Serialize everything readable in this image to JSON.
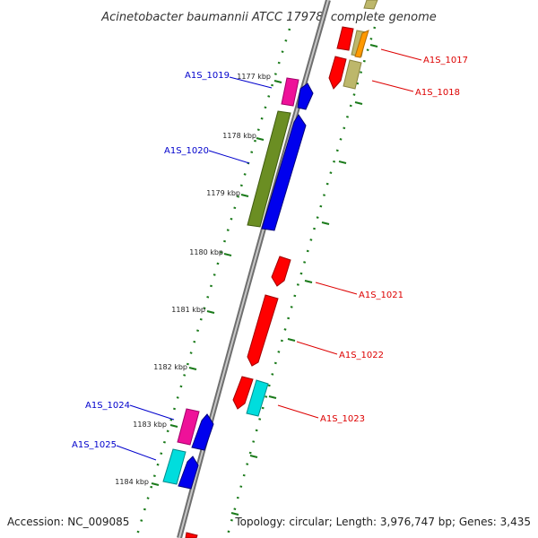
{
  "title": "Acinetobacter baumannii ATCC 17978, complete genome",
  "accession": "Accession: NC_009085",
  "topology": "Topology: circular; Length: 3,976,747 bp; Genes: 3,435",
  "ticks": [
    {
      "label": "1177 kbp",
      "pos": 1177.0
    },
    {
      "label": "1178 kbp",
      "pos": 1178.0
    },
    {
      "label": "1179 kbp",
      "pos": 1179.0
    },
    {
      "label": "1180 kbp",
      "pos": 1180.0
    },
    {
      "label": "1181 kbp",
      "pos": 1181.0
    },
    {
      "label": "1182 kbp",
      "pos": 1182.0
    },
    {
      "label": "1183 kbp",
      "pos": 1183.0
    },
    {
      "label": "1184 kbp",
      "pos": 1184.0
    }
  ],
  "gene_labels": {
    "reverse": [
      "A1S_1019",
      "A1S_1020",
      "A1S_1024",
      "A1S_1025"
    ],
    "forward": [
      "A1S_1017",
      "A1S_1018",
      "A1S_1021",
      "A1S_1022",
      "A1S_1023"
    ]
  },
  "colors": {
    "backbone": "#888888",
    "tick_dots": "#1a7a1a",
    "reverse_label": "#0000cc",
    "forward_label": "#dd0000",
    "red": "#ff0000",
    "blue": "#0000ee",
    "magenta": "#ee1199",
    "olive": "#6b8e23",
    "cyan": "#00dddd",
    "orange": "#ff9900",
    "khaki": "#bdb76b"
  }
}
